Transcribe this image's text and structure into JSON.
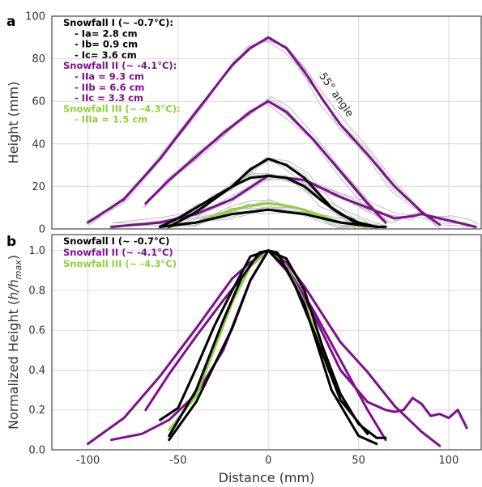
{
  "colors": {
    "snowfall_1": "#000000",
    "snowfall_2": "#7f0f8f",
    "snowfall_3": "#8fd13a",
    "raw_scans": "#bdbdbd",
    "grid": "#d9d9d9",
    "frame": "#222222"
  },
  "chart_data": [
    {
      "panel": "a",
      "type": "line",
      "xlabel": "",
      "ylabel": "Height (mm)",
      "xlim": [
        -120,
        118
      ],
      "ylim": [
        0,
        100
      ],
      "yticks": [
        0,
        20,
        40,
        60,
        80,
        100
      ],
      "grid": true,
      "annotation": "55° angle",
      "legend": {
        "placement": "top-left",
        "entries": [
          {
            "text": "Snowfall I (~ -0.7°C):",
            "color": "snowfall_1",
            "header": true
          },
          {
            "text": "- Ia= 2.8 cm",
            "color": "snowfall_1"
          },
          {
            "text": "- Ib= 0.9 cm",
            "color": "snowfall_1"
          },
          {
            "text": "- Ic= 3.6 cm",
            "color": "snowfall_1"
          },
          {
            "text": "Snowfall II (~ -4.1°C):",
            "color": "snowfall_2",
            "header": true
          },
          {
            "text": "- IIa = 9.3 cm",
            "color": "snowfall_2"
          },
          {
            "text": "- IIb = 6.6 cm",
            "color": "snowfall_2"
          },
          {
            "text": "- IIc = 3.3 cm",
            "color": "snowfall_2"
          },
          {
            "text": "Snowfall III (~ -4.3°C):",
            "color": "snowfall_3",
            "header": true
          },
          {
            "text": "- IIIa = 1.5 cm",
            "color": "snowfall_3"
          }
        ]
      },
      "series": [
        {
          "group": "snowfall_2",
          "x": [
            -100,
            -80,
            -60,
            -40,
            -20,
            -10,
            0,
            10,
            20,
            30,
            40,
            55,
            70,
            85,
            95
          ],
          "y": [
            3,
            14,
            33,
            55,
            77,
            85,
            90,
            85,
            74,
            61,
            49,
            35,
            20,
            8,
            2
          ]
        },
        {
          "group": "snowfall_2",
          "x": [
            -68,
            -55,
            -40,
            -25,
            -10,
            0,
            10,
            25,
            40,
            55,
            65
          ],
          "y": [
            12,
            23,
            34,
            45,
            55,
            60,
            55,
            42,
            27,
            12,
            3
          ]
        },
        {
          "group": "snowfall_2",
          "x": [
            -87,
            -60,
            -40,
            -20,
            0,
            20,
            40,
            55,
            70,
            80,
            85,
            90,
            95,
            100,
            110,
            115
          ],
          "y": [
            1,
            3,
            7,
            14,
            25,
            23,
            15,
            10,
            5,
            6,
            7,
            6,
            5,
            4,
            2,
            1
          ]
        },
        {
          "group": "snowfall_3",
          "x": [
            -55,
            -40,
            -20,
            -10,
            0,
            10,
            20,
            40,
            55
          ],
          "y": [
            1,
            3,
            9,
            11,
            12,
            11,
            9,
            3,
            1
          ]
        },
        {
          "group": "snowfall_1",
          "x": [
            -60,
            -50,
            -40,
            -30,
            -20,
            -10,
            0,
            10,
            20,
            30,
            40,
            50,
            60,
            65
          ],
          "y": [
            1,
            5,
            10,
            15,
            20,
            24,
            25,
            24,
            20,
            13,
            7,
            3,
            1,
            1
          ]
        },
        {
          "group": "snowfall_1",
          "x": [
            -55,
            -40,
            -20,
            -10,
            0,
            10,
            20,
            35,
            50
          ],
          "y": [
            1,
            8,
            20,
            28,
            33,
            30,
            24,
            10,
            2
          ]
        },
        {
          "group": "snowfall_1",
          "x": [
            -60,
            -40,
            -20,
            0,
            20,
            40,
            60
          ],
          "y": [
            1,
            3,
            7,
            9,
            7,
            3,
            1
          ]
        }
      ]
    },
    {
      "panel": "b",
      "type": "line",
      "xlabel": "Distance (mm)",
      "ylabel": "Normalized Height (h/h_max)",
      "xlim": [
        -120,
        118
      ],
      "ylim": [
        0,
        1.08
      ],
      "xticks": [
        -100,
        -50,
        0,
        50,
        100
      ],
      "yticks": [
        0.0,
        0.2,
        0.4,
        0.6,
        0.8,
        1.0
      ],
      "grid": true,
      "legend": {
        "placement": "top-left",
        "entries": [
          {
            "text": "Snowfall I (~ -0.7°C)",
            "color": "snowfall_1"
          },
          {
            "text": "Snowfall II (~ -4.1°C)",
            "color": "snowfall_2"
          },
          {
            "text": "Snowfall III (~ -4.3°C)",
            "color": "snowfall_3"
          }
        ]
      },
      "series": [
        {
          "group": "snowfall_2",
          "x": [
            -100,
            -80,
            -60,
            -40,
            -20,
            -10,
            0,
            10,
            20,
            30,
            40,
            55,
            70,
            85,
            95
          ],
          "y": [
            0.03,
            0.16,
            0.37,
            0.61,
            0.86,
            0.94,
            1.0,
            0.94,
            0.82,
            0.68,
            0.54,
            0.39,
            0.22,
            0.09,
            0.02
          ]
        },
        {
          "group": "snowfall_2",
          "x": [
            -68,
            -55,
            -40,
            -25,
            -10,
            0,
            10,
            25,
            40,
            55,
            65
          ],
          "y": [
            0.2,
            0.38,
            0.57,
            0.75,
            0.92,
            1.0,
            0.92,
            0.7,
            0.45,
            0.2,
            0.05
          ]
        },
        {
          "group": "snowfall_2",
          "x": [
            -87,
            -70,
            -55,
            -40,
            -25,
            -10,
            0,
            10,
            25,
            40,
            55,
            65,
            70,
            75,
            80,
            85,
            90,
            95,
            100,
            105,
            110
          ],
          "y": [
            0.05,
            0.08,
            0.15,
            0.28,
            0.5,
            0.85,
            1.0,
            0.9,
            0.68,
            0.4,
            0.24,
            0.2,
            0.19,
            0.2,
            0.26,
            0.23,
            0.17,
            0.18,
            0.16,
            0.2,
            0.11
          ]
        },
        {
          "group": "snowfall_3",
          "x": [
            -55,
            -40,
            -20,
            -10,
            0,
            10,
            20,
            40,
            55
          ],
          "y": [
            0.1,
            0.27,
            0.74,
            0.92,
            1.0,
            0.92,
            0.74,
            0.25,
            0.08
          ]
        },
        {
          "group": "snowfall_1",
          "x": [
            -60,
            -50,
            -40,
            -30,
            -20,
            -10,
            0,
            10,
            20,
            30,
            40,
            50,
            60,
            65
          ],
          "y": [
            0.15,
            0.21,
            0.41,
            0.62,
            0.8,
            0.97,
            1.0,
            0.96,
            0.8,
            0.52,
            0.28,
            0.13,
            0.06,
            0.06
          ]
        },
        {
          "group": "snowfall_1",
          "x": [
            -55,
            -40,
            -20,
            -10,
            0,
            10,
            20,
            35,
            50,
            60
          ],
          "y": [
            0.05,
            0.24,
            0.61,
            0.85,
            1.0,
            0.91,
            0.73,
            0.3,
            0.07,
            0.03
          ]
        },
        {
          "group": "snowfall_1",
          "x": [
            -55,
            -40,
            -25,
            -15,
            -5,
            0,
            5,
            15,
            25,
            40,
            55
          ],
          "y": [
            0.07,
            0.3,
            0.65,
            0.86,
            0.99,
            1.0,
            0.99,
            0.82,
            0.6,
            0.25,
            0.08
          ]
        }
      ]
    }
  ]
}
